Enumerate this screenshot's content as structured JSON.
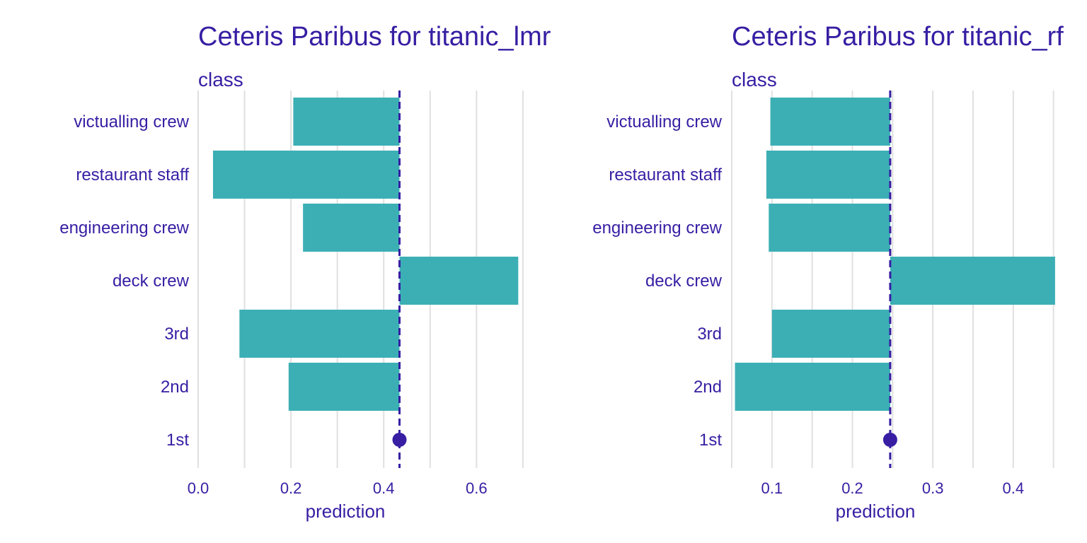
{
  "colors": {
    "bar": "#3cafb5",
    "line": "#371ea3",
    "point": "#371ea3",
    "grid": "#e0e0e0",
    "text": "#371ea3",
    "background": "#ffffff"
  },
  "chart_data": [
    {
      "type": "bar",
      "title": "Ceteris Paribus for titanic_lmr",
      "subtitle": "class",
      "xlabel": "prediction",
      "categories": [
        "1st",
        "2nd",
        "3rd",
        "deck crew",
        "engineering crew",
        "restaurant staff",
        "victualling crew"
      ],
      "values": [
        0.434,
        0.195,
        0.089,
        0.69,
        0.226,
        0.032,
        0.205
      ],
      "observed": {
        "category": "1st",
        "value": 0.434
      },
      "xlim": [
        0,
        0.72
      ],
      "xticks": [
        0.0,
        0.2,
        0.4,
        0.6
      ],
      "xtick_labels": [
        "0.0",
        "0.2",
        "0.4",
        "0.6"
      ],
      "grid": true
    },
    {
      "type": "bar",
      "title": "Ceteris Paribus for titanic_rf",
      "subtitle": "class",
      "xlabel": "prediction",
      "categories": [
        "1st",
        "2nd",
        "3rd",
        "deck crew",
        "engineering crew",
        "restaurant staff",
        "victualling crew"
      ],
      "values": [
        0.247,
        0.054,
        0.1,
        0.452,
        0.096,
        0.093,
        0.098
      ],
      "observed": {
        "category": "1st",
        "value": 0.247
      },
      "xlim": [
        0.05,
        0.46
      ],
      "xticks": [
        0.1,
        0.2,
        0.3,
        0.4
      ],
      "xtick_labels": [
        "0.1",
        "0.2",
        "0.3",
        "0.4"
      ],
      "grid": true
    }
  ]
}
